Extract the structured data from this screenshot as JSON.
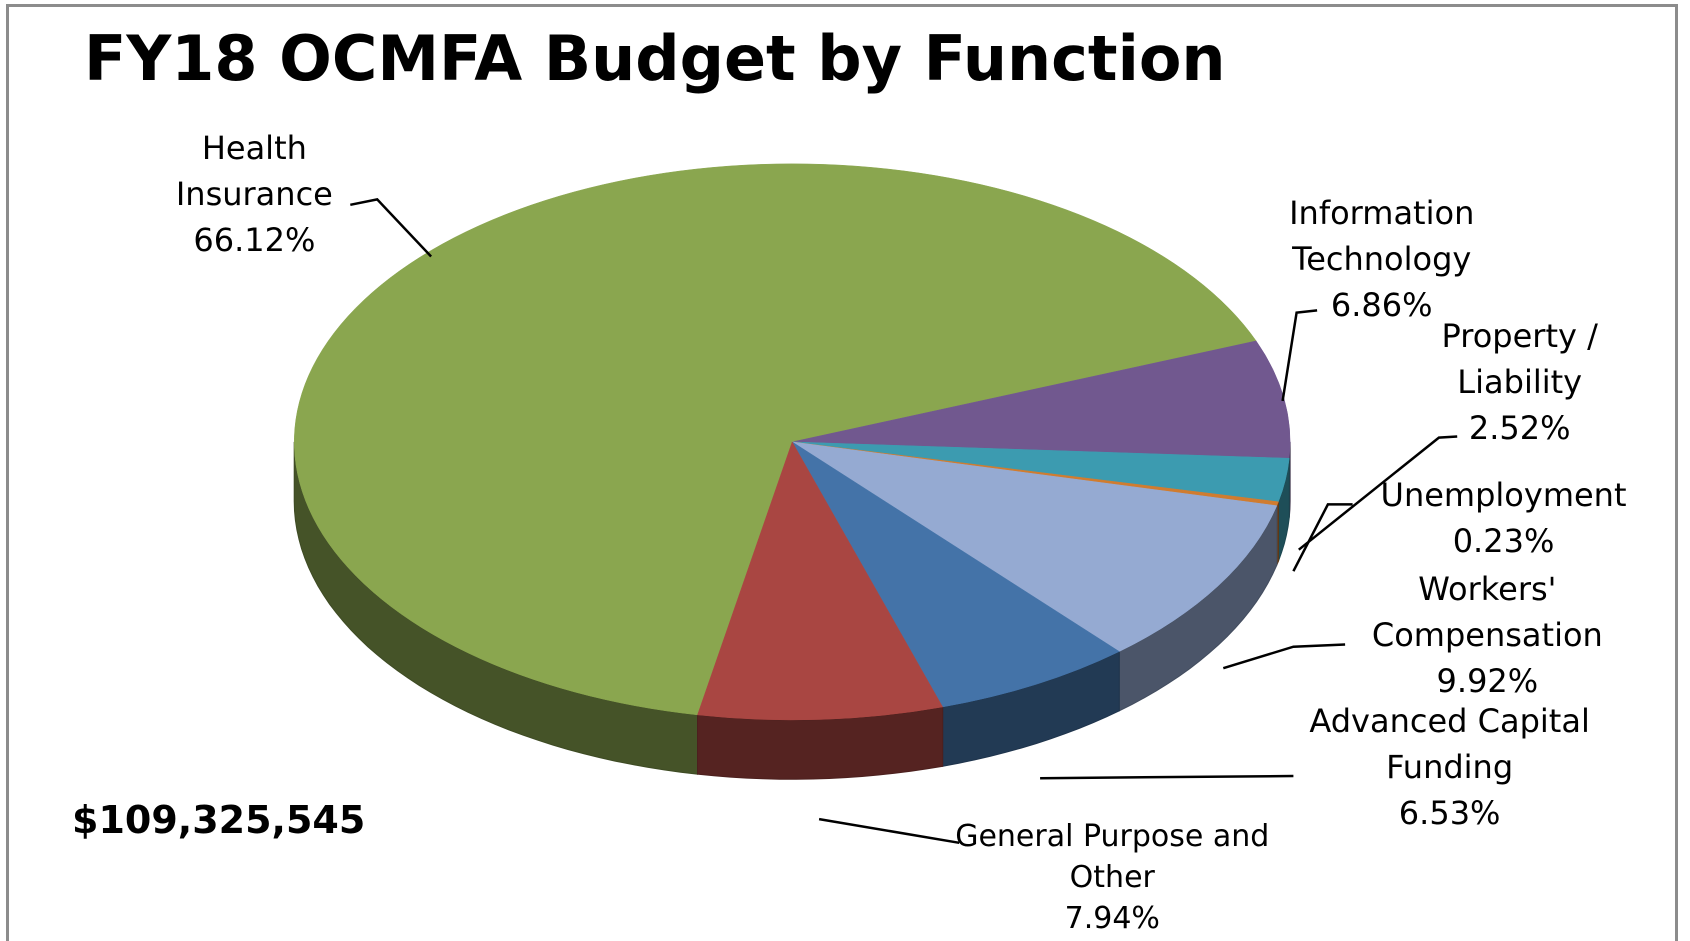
{
  "chart_data": {
    "type": "pie",
    "title": "FY18 OCMFA Budget by Function",
    "annotation": "$109,325,545",
    "categories": [
      "Health Insurance",
      "Information Technology",
      "Property / Liability",
      "Unemployment",
      "Workers' Compensation",
      "Advanced Capital Funding",
      "General Purpose and Other"
    ],
    "values": [
      66.12,
      6.86,
      2.52,
      0.23,
      9.92,
      6.53,
      7.94
    ],
    "value_labels": [
      "66.12%",
      "6.86%",
      "2.52%",
      "0.23%",
      "9.92%",
      "6.53%",
      "7.94%"
    ],
    "colors": [
      "#8aa64f",
      "#71588f",
      "#3c9bb0",
      "#d07c2f",
      "#95aad2",
      "#4473a8",
      "#a94642"
    ]
  }
}
